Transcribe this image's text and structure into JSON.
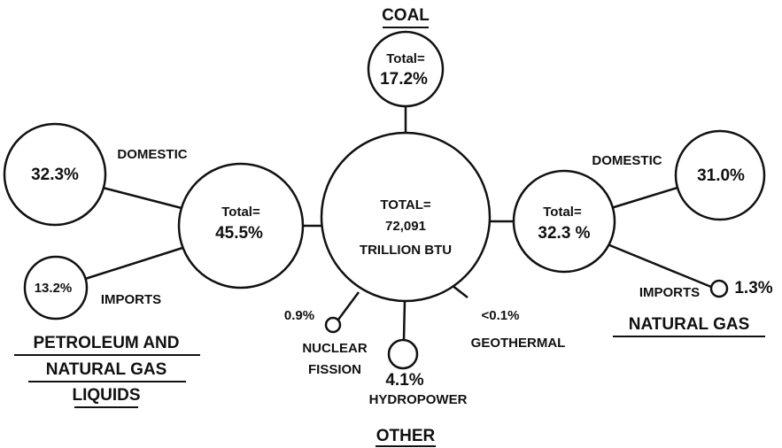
{
  "center": {
    "lines": [
      "TOTAL=",
      "72,091",
      "TRILLION BTU"
    ]
  },
  "coal": {
    "heading": "COAL",
    "total": [
      "Total=",
      "17.2%"
    ]
  },
  "petroleum": {
    "heading": [
      "PETROLEUM AND",
      "NATURAL GAS",
      "LIQUIDS"
    ],
    "total": [
      "Total=",
      "45.5%"
    ],
    "domestic": {
      "label": "DOMESTIC",
      "value": "32.3%"
    },
    "imports": {
      "label": "IMPORTS",
      "value": "13.2%"
    }
  },
  "natural_gas": {
    "heading": "NATURAL GAS",
    "total": [
      "Total=",
      "32.3 %"
    ],
    "domestic": {
      "label": "DOMESTIC",
      "value": "31.0%"
    },
    "imports": {
      "label": "IMPORTS",
      "value": "1.3%"
    }
  },
  "other": {
    "heading": "OTHER",
    "nuclear": {
      "value": "0.9%",
      "label": [
        "NUCLEAR",
        "FISSION"
      ]
    },
    "hydro": {
      "value": "4.1%",
      "label": "HYDROPOWER"
    },
    "geothermal": {
      "value": "<0.1%",
      "label": "GEOTHERMAL"
    }
  }
}
